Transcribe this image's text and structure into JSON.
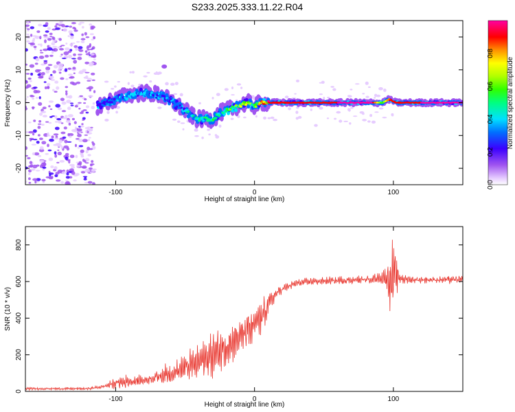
{
  "title": "S233.2025.333.11.22.R04",
  "chart_data": [
    {
      "type": "heatmap",
      "name": "spectrogram",
      "xlabel": "Height of straight line (km)",
      "ylabel": "Frequency (Hz)",
      "xlim": [
        -165,
        150
      ],
      "ylim": [
        -25,
        25
      ],
      "xticks": [
        -100,
        0,
        100
      ],
      "yticks": [
        -20,
        -10,
        0,
        10,
        20
      ],
      "colorbar": {
        "label": "Normalized spectral amplitude",
        "range": [
          0,
          1
        ],
        "ticks": [
          "0.0",
          "0.2",
          "0.4",
          "0.6",
          "0.8"
        ],
        "tick_values": [
          0.0,
          0.2,
          0.4,
          0.6,
          0.8
        ]
      },
      "ridge": {
        "x": [
          -113,
          -100,
          -90,
          -80,
          -70,
          -62,
          -55,
          -48,
          -42,
          -36,
          -30,
          -24,
          -18,
          -12,
          -5,
          0,
          5,
          10,
          20,
          40,
          60,
          85,
          92,
          97,
          102,
          120,
          150
        ],
        "freq": [
          -1,
          1,
          2.5,
          3,
          2.5,
          1,
          -1,
          -3,
          -5,
          -5,
          -5,
          -3,
          -2,
          -1,
          0,
          -1,
          0,
          0,
          0,
          0,
          0,
          0,
          0,
          1,
          0,
          0,
          0
        ],
        "amplitude": [
          0.3,
          0.35,
          0.4,
          0.4,
          0.35,
          0.35,
          0.4,
          0.45,
          0.45,
          0.5,
          0.5,
          0.5,
          0.6,
          0.65,
          0.75,
          0.55,
          0.9,
          0.92,
          0.95,
          0.98,
          1.0,
          1.0,
          0.6,
          0.9,
          0.98,
          1.0,
          1.0
        ]
      },
      "noise_region_x": [
        -165,
        -115
      ]
    },
    {
      "type": "line",
      "name": "snr",
      "xlabel": "Height of straight line (km)",
      "ylabel": "SNR (10 * v/v)",
      "xlim": [
        -165,
        150
      ],
      "ylim": [
        0,
        900
      ],
      "xticks": [
        -100,
        0,
        100
      ],
      "yticks": [
        0,
        200,
        400,
        600,
        800
      ],
      "color": "#e8322a",
      "envelope": {
        "x": [
          -165,
          -120,
          -110,
          -100,
          -90,
          -80,
          -70,
          -60,
          -50,
          -40,
          -30,
          -20,
          -10,
          -5,
          0,
          5,
          10,
          15,
          20,
          25,
          30,
          40,
          60,
          80,
          90,
          95,
          98,
          100,
          102,
          105,
          110,
          130,
          150
        ],
        "mean": [
          15,
          15,
          25,
          45,
          55,
          60,
          80,
          100,
          130,
          160,
          200,
          250,
          300,
          330,
          360,
          400,
          480,
          530,
          560,
          575,
          590,
          600,
          605,
          610,
          620,
          620,
          600,
          610,
          620,
          620,
          610,
          610,
          610
        ],
        "amplitude": [
          8,
          8,
          12,
          35,
          45,
          30,
          50,
          70,
          90,
          110,
          140,
          130,
          110,
          120,
          100,
          150,
          60,
          40,
          30,
          25,
          25,
          25,
          25,
          25,
          30,
          70,
          200,
          280,
          120,
          40,
          25,
          25,
          25
        ]
      }
    }
  ]
}
